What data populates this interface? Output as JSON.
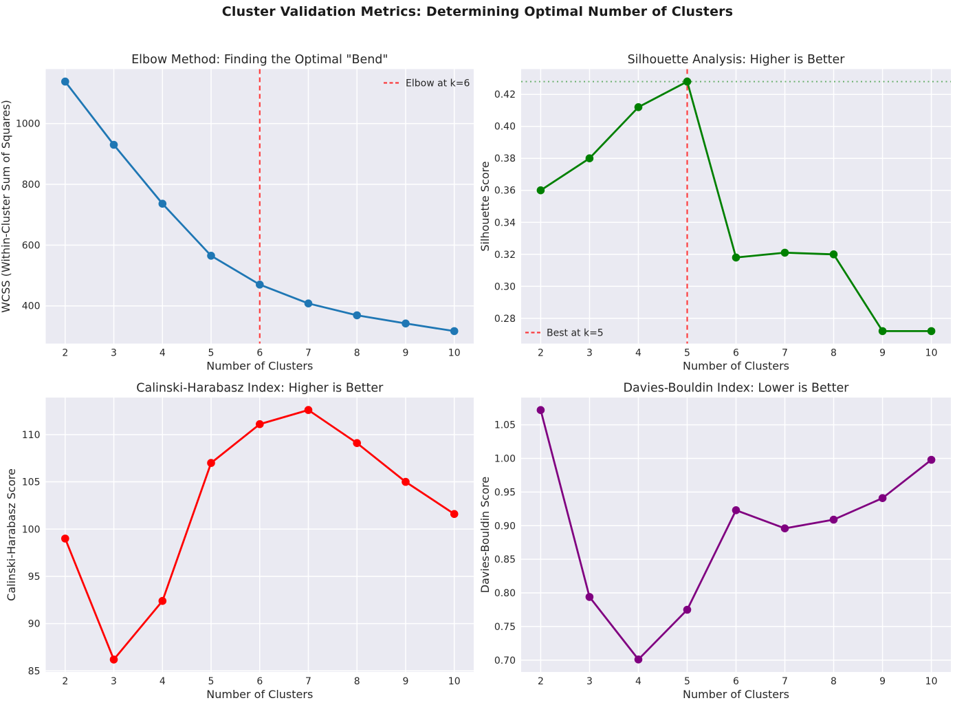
{
  "figure_title": "Cluster Validation Metrics: Determining Optimal Number of Clusters",
  "theme": {
    "figure_bg": "#ffffff",
    "plot_bg": "#eaeaf2",
    "grid_color": "#ffffff",
    "text_color": "#262626",
    "annotation_red": "#ff0000",
    "best_score_green": "#008000"
  },
  "chart_data": [
    {
      "id": "elbow",
      "type": "line",
      "title": "Elbow Method: Finding the Optimal \"Bend\"",
      "xlabel": "Number of Clusters",
      "ylabel": "WCSS (Within-Cluster Sum of Squares)",
      "x": [
        2,
        3,
        4,
        5,
        6,
        7,
        8,
        9,
        10
      ],
      "values": [
        1138,
        930,
        736,
        565,
        470,
        408,
        369,
        342,
        317
      ],
      "color": "#1f77b4",
      "xlim": [
        1.6,
        10.4
      ],
      "ylim": [
        276,
        1179
      ],
      "xticks": [
        2,
        3,
        4,
        5,
        6,
        7,
        8,
        9,
        10
      ],
      "yticks": [
        400,
        600,
        800,
        1000
      ],
      "ytick_labels": [
        "400",
        "600",
        "800",
        "1000"
      ],
      "grid": true,
      "annotations": [
        {
          "type": "vline",
          "x": 6,
          "color": "#ff0000",
          "style": "dashed",
          "opacity": 0.75
        }
      ],
      "legend": {
        "label": "Elbow at k=6",
        "position": "top-right",
        "sample_color": "#ff0000",
        "sample_style": "dashed"
      }
    },
    {
      "id": "silhouette",
      "type": "line",
      "title": "Silhouette Analysis: Higher is Better",
      "xlabel": "Number of Clusters",
      "ylabel": "Silhouette Score",
      "x": [
        2,
        3,
        4,
        5,
        6,
        7,
        8,
        9,
        10
      ],
      "values": [
        0.36,
        0.38,
        0.412,
        0.428,
        0.318,
        0.321,
        0.32,
        0.272,
        0.272
      ],
      "color": "#008000",
      "xlim": [
        1.6,
        10.4
      ],
      "ylim": [
        0.2642,
        0.4358
      ],
      "xticks": [
        2,
        3,
        4,
        5,
        6,
        7,
        8,
        9,
        10
      ],
      "yticks": [
        0.28,
        0.3,
        0.32,
        0.34,
        0.36,
        0.38,
        0.4,
        0.42
      ],
      "ytick_labels": [
        "0.28",
        "0.30",
        "0.32",
        "0.34",
        "0.36",
        "0.38",
        "0.40",
        "0.42"
      ],
      "grid": true,
      "annotations": [
        {
          "type": "vline",
          "x": 5,
          "color": "#ff0000",
          "style": "dashed",
          "opacity": 0.75
        },
        {
          "type": "hline",
          "y": 0.428,
          "color": "#008000",
          "style": "dotted",
          "opacity": 0.55
        }
      ],
      "legend": {
        "label": "Best at k=5",
        "position": "bottom-left",
        "sample_color": "#ff0000",
        "sample_style": "dashed"
      }
    },
    {
      "id": "calinski-harabasz",
      "type": "line",
      "title": "Calinski-Harabasz Index: Higher is Better",
      "xlabel": "Number of Clusters",
      "ylabel": "Calinski-Harabasz Score",
      "x": [
        2,
        3,
        4,
        5,
        6,
        7,
        8,
        9,
        10
      ],
      "values": [
        99.0,
        86.2,
        92.4,
        107.0,
        111.1,
        112.6,
        109.1,
        105.0,
        101.6
      ],
      "color": "#ff0000",
      "xlim": [
        1.6,
        10.4
      ],
      "ylim": [
        84.88,
        113.92
      ],
      "xticks": [
        2,
        3,
        4,
        5,
        6,
        7,
        8,
        9,
        10
      ],
      "yticks": [
        85,
        90,
        95,
        100,
        105,
        110
      ],
      "ytick_labels": [
        "85",
        "90",
        "95",
        "100",
        "105",
        "110"
      ],
      "grid": true,
      "annotations": [],
      "legend": null
    },
    {
      "id": "davies-bouldin",
      "type": "line",
      "title": "Davies-Bouldin Index: Lower is Better",
      "xlabel": "Number of Clusters",
      "ylabel": "Davies-Bouldin Score",
      "x": [
        2,
        3,
        4,
        5,
        6,
        7,
        8,
        9,
        10
      ],
      "values": [
        1.072,
        0.794,
        0.701,
        0.775,
        0.923,
        0.896,
        0.909,
        0.941,
        0.998
      ],
      "color": "#800080",
      "xlim": [
        1.6,
        10.4
      ],
      "ylim": [
        0.6824,
        1.0906
      ],
      "xticks": [
        2,
        3,
        4,
        5,
        6,
        7,
        8,
        9,
        10
      ],
      "yticks": [
        0.7,
        0.75,
        0.8,
        0.85,
        0.9,
        0.95,
        1.0,
        1.05
      ],
      "ytick_labels": [
        "0.70",
        "0.75",
        "0.80",
        "0.85",
        "0.90",
        "0.95",
        "1.00",
        "1.05"
      ],
      "grid": true,
      "annotations": [],
      "legend": null
    }
  ]
}
